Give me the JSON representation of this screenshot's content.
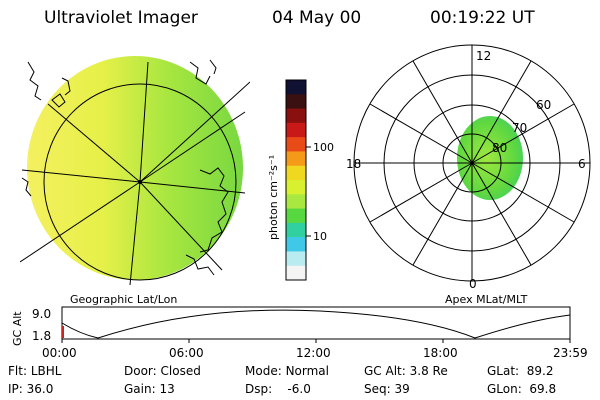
{
  "header": {
    "instrument": "Ultraviolet Imager",
    "date": "04 May 00",
    "time": "00:19:22 UT"
  },
  "colorbar": {
    "unit_label": "photon cm⁻²s⁻¹",
    "ticks": [
      "100",
      "10"
    ],
    "colors": [
      "#111133",
      "#3a1010",
      "#8a1010",
      "#c81818",
      "#e84a18",
      "#f49a18",
      "#f0d820",
      "#d8f030",
      "#a8e840",
      "#58d840",
      "#30d0a0",
      "#40c8e8",
      "#b8ecf0",
      "#f4f4f4"
    ]
  },
  "left_panel": {
    "label": "Geographic Lat/Lon"
  },
  "right_panel": {
    "label": "Apex MLat/MLT",
    "hours": {
      "top": "12",
      "right": "6",
      "bottom": "0",
      "left": "18"
    },
    "lat_labels": [
      "60",
      "70",
      "80"
    ]
  },
  "altitude_plot": {
    "ylabel": "GC Alt",
    "yticks": [
      "9.0",
      "1.8"
    ],
    "xticks": [
      "00:00",
      "06:00",
      "12:00",
      "18:00",
      "23:59"
    ]
  },
  "info": {
    "row1": [
      {
        "label": "Flt:",
        "value": "LBHL"
      },
      {
        "label": "Door:",
        "value": "Closed"
      },
      {
        "label": "Mode:",
        "value": "Normal"
      },
      {
        "label": "GC Alt:",
        "value": "3.8 Re"
      },
      {
        "label": "GLat:",
        "value": "89.2"
      }
    ],
    "row2": [
      {
        "label": "IP:",
        "value": "36.0"
      },
      {
        "label": "Gain:",
        "value": "13"
      },
      {
        "label": "Dsp:",
        "value": "-6.0"
      },
      {
        "label": "Seq:",
        "value": "39"
      },
      {
        "label": "GLon:",
        "value": "69.8"
      }
    ]
  }
}
